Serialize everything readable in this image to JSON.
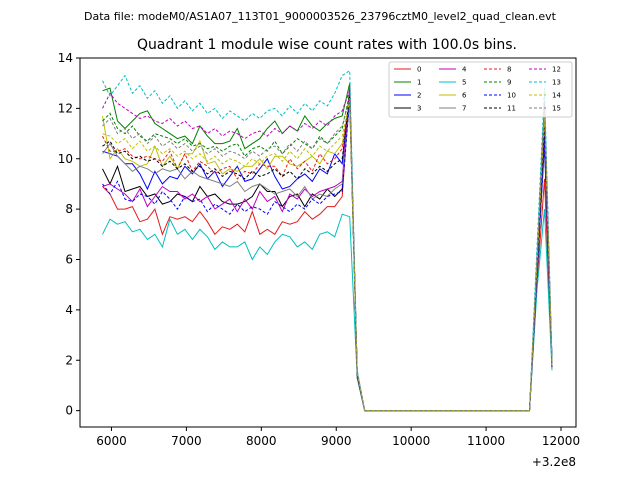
{
  "chart_data": {
    "type": "line",
    "suptitle": "Data file: modeM0/AS1A07_113T01_9000003526_23796cztM0_level2_quad_clean.evt",
    "title": "Quadrant 1 module wise count rates with 100.0s bins.",
    "offset_label": "+3.2e8",
    "xlabel": "",
    "ylabel": "",
    "xlim": [
      5580,
      12200
    ],
    "ylim": [
      -0.65,
      14.0
    ],
    "x_ticks": [
      6000,
      7000,
      8000,
      9000,
      10000,
      11000,
      12000
    ],
    "x_tick_labels": [
      "6000",
      "7000",
      "8000",
      "9000",
      "10000",
      "11000",
      "12000"
    ],
    "y_ticks": [
      0,
      2,
      4,
      6,
      8,
      10,
      12,
      14
    ],
    "y_tick_labels": [
      "0",
      "2",
      "4",
      "6",
      "8",
      "10",
      "12",
      "14"
    ],
    "legend_position": "top-right",
    "x": [
      5880,
      5980,
      6080,
      6180,
      6280,
      6380,
      6480,
      6580,
      6680,
      6780,
      6880,
      6980,
      7080,
      7180,
      7280,
      7380,
      7480,
      7580,
      7680,
      7780,
      7880,
      7980,
      8080,
      8180,
      8280,
      8380,
      8480,
      8580,
      8680,
      8780,
      8880,
      8980,
      9080,
      9180,
      9280,
      9380,
      11580,
      11680,
      11780,
      11880
    ],
    "series": [
      {
        "name": "0",
        "color": "#e41a1c",
        "dashed": false,
        "values": [
          8.9,
          8.6,
          8.0,
          8.0,
          8.1,
          7.5,
          7.6,
          8.0,
          7.0,
          7.7,
          7.6,
          7.7,
          7.5,
          7.9,
          7.5,
          7.0,
          7.3,
          7.2,
          7.4,
          7.1,
          7.9,
          7.0,
          7.2,
          7.0,
          7.5,
          7.4,
          7.5,
          7.9,
          7.6,
          7.8,
          8.1,
          8.1,
          8.5,
          12.7,
          1.3,
          0.0,
          0.0,
          5.0,
          9.2,
          1.8
        ]
      },
      {
        "name": "1",
        "color": "#008000",
        "dashed": false,
        "values": [
          12.7,
          12.8,
          11.5,
          11.2,
          11.5,
          11.8,
          11.9,
          11.4,
          11.2,
          11.0,
          10.8,
          10.9,
          10.6,
          11.3,
          10.9,
          10.6,
          10.6,
          10.7,
          11.2,
          10.4,
          10.6,
          10.8,
          11.2,
          11.5,
          11.0,
          11.3,
          11.1,
          11.7,
          11.3,
          11.1,
          11.4,
          11.6,
          11.7,
          13.0,
          1.5,
          0.0,
          0.0,
          6.0,
          12.3,
          1.7
        ]
      },
      {
        "name": "2",
        "color": "#0000ff",
        "dashed": false,
        "values": [
          10.3,
          10.2,
          10.1,
          9.8,
          9.8,
          9.4,
          8.8,
          9.5,
          9.0,
          9.3,
          9.2,
          9.7,
          9.4,
          9.8,
          9.2,
          9.5,
          8.9,
          9.3,
          9.7,
          9.1,
          9.2,
          9.6,
          10.0,
          9.3,
          8.8,
          8.9,
          9.2,
          9.4,
          9.1,
          9.6,
          9.4,
          10.2,
          9.8,
          12.6,
          1.4,
          0.0,
          0.0,
          5.5,
          10.5,
          2.1
        ]
      },
      {
        "name": "3",
        "color": "#000000",
        "dashed": false,
        "values": [
          9.6,
          9.0,
          9.7,
          8.7,
          8.8,
          8.9,
          8.5,
          8.6,
          8.2,
          8.3,
          8.6,
          8.5,
          8.3,
          8.9,
          8.5,
          8.6,
          8.3,
          8.2,
          8.2,
          8.3,
          8.5,
          9.0,
          8.7,
          8.7,
          8.1,
          8.5,
          8.6,
          8.1,
          8.6,
          8.4,
          8.8,
          8.5,
          8.8,
          12.8,
          1.4,
          0.0,
          0.0,
          5.4,
          10.8,
          1.9
        ]
      },
      {
        "name": "4",
        "color": "#bf00bf",
        "dashed": false,
        "values": [
          8.9,
          9.0,
          8.8,
          8.6,
          8.3,
          8.8,
          8.1,
          8.5,
          8.9,
          8.7,
          8.7,
          8.4,
          8.6,
          8.3,
          8.5,
          8.0,
          8.2,
          8.4,
          7.9,
          8.4,
          8.0,
          8.7,
          8.3,
          8.5,
          7.9,
          8.6,
          8.4,
          8.8,
          8.5,
          8.7,
          8.8,
          8.9,
          9.1,
          12.9,
          1.5,
          0.0,
          0.0,
          5.5,
          10.8,
          1.8
        ]
      },
      {
        "name": "5",
        "color": "#00bfbf",
        "dashed": false,
        "values": [
          7.0,
          7.6,
          7.4,
          7.5,
          7.1,
          7.2,
          6.8,
          7.0,
          6.5,
          7.6,
          7.0,
          7.2,
          6.8,
          7.2,
          6.9,
          6.4,
          6.7,
          6.5,
          6.5,
          6.7,
          6.0,
          6.5,
          6.2,
          6.7,
          7.0,
          6.9,
          6.5,
          6.7,
          6.4,
          7.0,
          7.1,
          6.9,
          7.8,
          7.7,
          1.3,
          0.0,
          0.0,
          4.8,
          8.0,
          1.6
        ]
      },
      {
        "name": "6",
        "color": "#bfbf00",
        "dashed": false,
        "values": [
          11.7,
          10.0,
          10.4,
          10.0,
          9.9,
          9.7,
          9.8,
          10.5,
          9.7,
          10.1,
          9.6,
          10.2,
          10.2,
          10.7,
          9.8,
          9.9,
          9.4,
          9.6,
          9.5,
          9.7,
          9.7,
          10.0,
          9.6,
          10.1,
          10.1,
          9.8,
          9.7,
          9.9,
          10.1,
          9.8,
          10.3,
          10.2,
          10.6,
          12.2,
          1.4,
          0.0,
          0.0,
          5.6,
          11.5,
          1.9
        ]
      },
      {
        "name": "7",
        "color": "#808080",
        "dashed": false,
        "values": [
          10.2,
          10.6,
          10.1,
          9.8,
          9.5,
          9.7,
          9.6,
          9.4,
          9.6,
          9.5,
          9.6,
          9.2,
          9.5,
          9.3,
          9.2,
          9.1,
          9.0,
          8.9,
          9.1,
          8.7,
          8.9,
          9.0,
          8.8,
          8.6,
          8.7,
          8.8,
          8.5,
          8.9,
          8.4,
          8.6,
          8.5,
          8.8,
          9.0,
          12.3,
          1.4,
          0.0,
          0.0,
          5.2,
          11.0,
          1.7
        ]
      },
      {
        "name": "8",
        "color": "#e41a1c",
        "dashed": true,
        "values": [
          10.9,
          10.3,
          10.3,
          10.4,
          10.1,
          10.0,
          10.1,
          10.0,
          9.9,
          10.3,
          9.6,
          10.2,
          9.5,
          9.9,
          9.7,
          9.4,
          9.6,
          9.7,
          9.2,
          9.5,
          9.4,
          9.8,
          9.7,
          9.7,
          9.3,
          10.0,
          9.6,
          9.9,
          9.5,
          10.2,
          9.8,
          10.0,
          10.4,
          12.5,
          1.5,
          0.0,
          0.0,
          5.7,
          11.6,
          1.8
        ]
      },
      {
        "name": "9",
        "color": "#008000",
        "dashed": true,
        "values": [
          11.5,
          11.8,
          11.2,
          11.0,
          11.3,
          10.9,
          10.7,
          11.0,
          10.9,
          10.8,
          10.6,
          10.8,
          10.5,
          10.6,
          10.4,
          10.5,
          10.3,
          10.5,
          10.6,
          10.1,
          10.4,
          10.5,
          10.3,
          10.7,
          10.2,
          10.5,
          10.8,
          10.6,
          10.4,
          10.9,
          10.6,
          10.9,
          11.2,
          12.6,
          1.5,
          0.0,
          0.0,
          5.9,
          12.0,
          1.8
        ]
      },
      {
        "name": "10",
        "color": "#0000ff",
        "dashed": true,
        "values": [
          9.0,
          8.6,
          9.1,
          8.4,
          8.3,
          8.6,
          8.5,
          8.2,
          8.7,
          8.4,
          8.0,
          8.5,
          8.3,
          8.4,
          7.9,
          8.2,
          8.0,
          7.8,
          8.2,
          7.9,
          8.1,
          8.0,
          7.8,
          8.3,
          8.1,
          7.9,
          8.2,
          8.0,
          8.4,
          8.2,
          8.5,
          8.6,
          8.7,
          12.4,
          1.4,
          0.0,
          0.0,
          5.3,
          10.9,
          1.7
        ]
      },
      {
        "name": "11",
        "color": "#000000",
        "dashed": true,
        "values": [
          10.5,
          10.7,
          10.2,
          10.3,
          10.0,
          10.1,
          9.9,
          10.0,
          9.7,
          9.9,
          9.6,
          9.8,
          9.5,
          9.7,
          9.4,
          9.6,
          9.3,
          9.5,
          9.4,
          9.2,
          9.5,
          9.3,
          9.4,
          9.6,
          9.3,
          9.5,
          9.2,
          9.6,
          9.4,
          9.7,
          9.5,
          9.8,
          10.0,
          12.5,
          1.4,
          0.0,
          0.0,
          5.6,
          11.3,
          1.8
        ]
      },
      {
        "name": "12",
        "color": "#bf00bf",
        "dashed": true,
        "values": [
          12.0,
          12.6,
          12.2,
          12.0,
          11.8,
          11.6,
          11.7,
          11.5,
          11.4,
          11.6,
          11.3,
          11.5,
          11.2,
          11.3,
          11.0,
          11.2,
          10.9,
          11.1,
          11.0,
          10.8,
          11.0,
          11.1,
          10.9,
          11.2,
          11.0,
          11.3,
          11.1,
          11.4,
          11.2,
          11.5,
          11.3,
          11.7,
          11.9,
          12.7,
          1.5,
          0.0,
          0.0,
          6.1,
          12.2,
          1.9
        ]
      },
      {
        "name": "13",
        "color": "#00bfbf",
        "dashed": true,
        "values": [
          13.1,
          12.5,
          12.9,
          13.3,
          12.6,
          12.9,
          12.4,
          12.7,
          12.2,
          12.5,
          12.0,
          12.3,
          11.9,
          12.2,
          11.8,
          12.0,
          11.6,
          11.9,
          11.7,
          11.5,
          11.8,
          11.6,
          11.9,
          12.0,
          11.7,
          12.1,
          11.8,
          12.2,
          11.9,
          12.3,
          12.1,
          12.6,
          13.3,
          13.5,
          1.6,
          0.0,
          0.0,
          6.5,
          12.8,
          2.0
        ]
      },
      {
        "name": "14",
        "color": "#bfbf00",
        "dashed": true,
        "values": [
          11.0,
          10.9,
          10.6,
          10.8,
          10.4,
          10.7,
          10.3,
          10.5,
          10.2,
          10.4,
          10.1,
          10.3,
          10.0,
          10.2,
          9.9,
          10.1,
          9.8,
          10.0,
          9.9,
          9.7,
          10.0,
          9.8,
          10.1,
          10.2,
          9.9,
          10.3,
          10.0,
          10.4,
          10.1,
          10.5,
          10.3,
          10.6,
          10.9,
          12.3,
          1.5,
          0.0,
          0.0,
          5.8,
          11.8,
          1.8
        ]
      },
      {
        "name": "15",
        "color": "#808080",
        "dashed": true,
        "values": [
          11.3,
          11.6,
          11.0,
          11.2,
          10.8,
          11.0,
          10.6,
          10.9,
          10.5,
          10.7,
          10.4,
          10.6,
          10.3,
          10.5,
          10.2,
          10.4,
          10.1,
          10.3,
          10.2,
          10.0,
          10.3,
          10.1,
          10.4,
          10.5,
          10.2,
          10.6,
          10.3,
          10.7,
          10.4,
          10.8,
          10.6,
          11.0,
          11.3,
          12.4,
          1.5,
          0.0,
          0.0,
          5.9,
          12.0,
          1.8
        ]
      }
    ]
  }
}
